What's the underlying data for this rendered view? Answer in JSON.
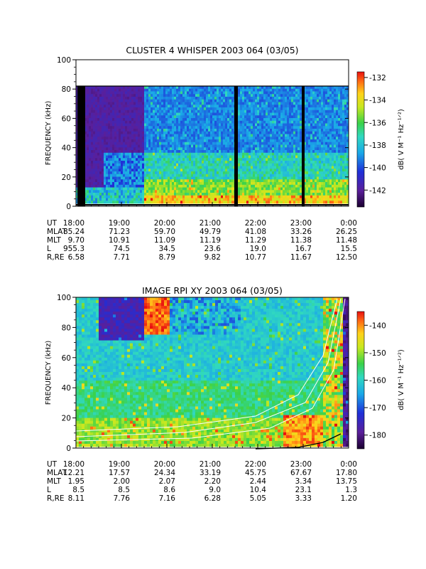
{
  "chart_data": [
    {
      "type": "heatmap",
      "title": "CLUSTER 4 WHISPER 2003 064 (03/05)",
      "ylabel": "FREQUENCY (kHz)",
      "ylim": [
        0,
        100
      ],
      "yticks": [
        "0",
        "20",
        "40",
        "60",
        "80",
        "100"
      ],
      "x_ticks": [
        "18:00",
        "19:00",
        "20:00",
        "21:00",
        "22:00",
        "23:00",
        "0:00"
      ],
      "colorbar": {
        "label": "dB( V M⁻¹ Hz⁻¹ᐟ²)",
        "ticks": [
          "-132",
          "-134",
          "-136",
          "-138",
          "-140",
          "-142"
        ],
        "range": [
          -143.5,
          -131.5
        ]
      },
      "data_frequency_top_khz": 80,
      "data_gaps_ut": [
        "18:05",
        "21:33",
        "22:58"
      ],
      "ephemeris": {
        "labels": [
          "UT",
          "MLAT",
          "MLT",
          "L",
          "R,RE"
        ],
        "rows": [
          [
            "18:00",
            "19:00",
            "20:00",
            "21:00",
            "22:00",
            "23:00",
            "0:00"
          ],
          [
            "85.24",
            "71.23",
            "59.70",
            "49.79",
            "41.08",
            "33.26",
            "26.25"
          ],
          [
            "9.70",
            "10.91",
            "11.09",
            "11.19",
            "11.29",
            "11.38",
            "11.48"
          ],
          [
            "955.3",
            "74.5",
            "34.5",
            "23.6",
            "19.0",
            "16.7",
            "15.5"
          ],
          [
            "6.58",
            "7.71",
            "8.79",
            "9.82",
            "10.77",
            "11.67",
            "12.50"
          ]
        ]
      }
    },
    {
      "type": "heatmap",
      "title": "IMAGE RPI XY 2003 064 (03/05)",
      "ylabel": "FREQUENCY (kHz)",
      "ylim": [
        0,
        100
      ],
      "yticks": [
        "0",
        "20",
        "40",
        "60",
        "80",
        "100"
      ],
      "x_ticks": [
        "18:00",
        "19:00",
        "20:00",
        "21:00",
        "22:00",
        "23:00",
        "0:00"
      ],
      "colorbar": {
        "label": "dB( V M⁻¹ Hz⁻¹ᐟ²)",
        "ticks": [
          "-140",
          "-150",
          "-160",
          "-170",
          "-180"
        ],
        "range": [
          -185,
          -135
        ]
      },
      "overlay_curves": "white plasma frequency model lines",
      "ephemeris": {
        "labels": [
          "UT",
          "MLAT",
          "MLT",
          "L",
          "R,RE"
        ],
        "rows": [
          [
            "18:00",
            "19:00",
            "20:00",
            "21:00",
            "22:00",
            "23:00",
            "0:00"
          ],
          [
            "12.21",
            "17.57",
            "24.34",
            "33.19",
            "45.75",
            "67.67",
            "17.80"
          ],
          [
            "1.95",
            "2.00",
            "2.07",
            "2.20",
            "2.44",
            "3.34",
            "13.75"
          ],
          [
            "8.5",
            "8.5",
            "8.6",
            "9.0",
            "10.4",
            "23.1",
            "1.3"
          ],
          [
            "8.11",
            "7.76",
            "7.16",
            "6.28",
            "5.05",
            "3.33",
            "1.20"
          ]
        ]
      }
    }
  ]
}
